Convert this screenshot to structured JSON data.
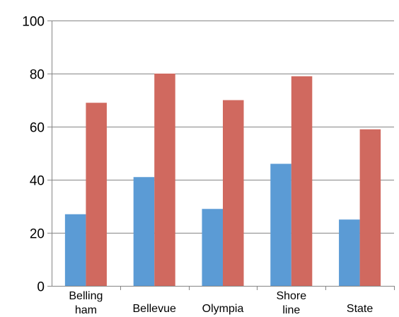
{
  "chart_data": {
    "type": "bar",
    "categories": [
      [
        "Belling",
        "ham"
      ],
      [
        "Bellevue"
      ],
      [
        "Olympia"
      ],
      [
        "Shore",
        "line"
      ],
      [
        "State"
      ]
    ],
    "series": [
      {
        "values": [
          27,
          41,
          29,
          46,
          25
        ],
        "color": "#5B9BD5"
      },
      {
        "values": [
          69,
          80,
          70,
          79,
          59
        ],
        "color": "#D0695F"
      }
    ],
    "ylim": [
      0,
      100
    ],
    "yticks": [
      0,
      20,
      40,
      60,
      80,
      100
    ],
    "grid": true,
    "title": "",
    "xlabel": "",
    "ylabel": ""
  }
}
